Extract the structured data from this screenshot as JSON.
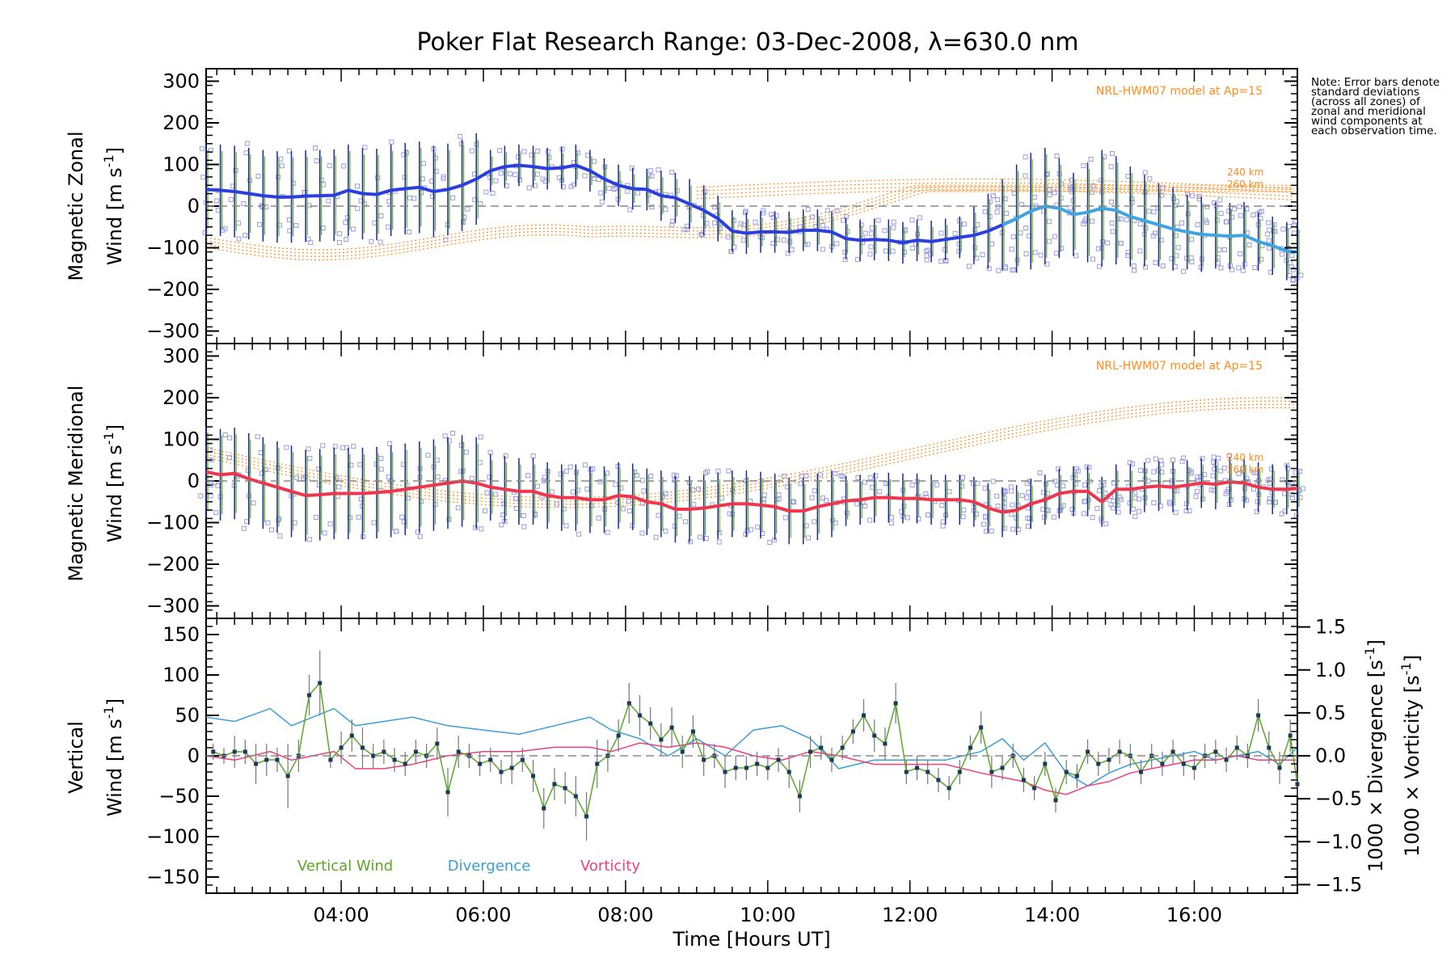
{
  "title": "Poker Flat Research Range: 03-Dec-2008, λ=630.0 nm",
  "note": "Note: Error bars denote standard deviations (across all zones) of zonal and meridional wind components at each observation time.",
  "colors": {
    "zonal": "#2b3fe0",
    "zonal_late": "#3fa4e0",
    "meridional": "#f0354f",
    "vertical": "#5aa825",
    "divergence": "#3a9fd8",
    "vorticity": "#f0407a",
    "model": "#ff8c1a",
    "scatter": "#9b9be0",
    "errbar": "#1a2a8a"
  },
  "chart_data": [
    {
      "type": "line",
      "panel": "zonal",
      "ylabel_line1": "Magnetic Zonal",
      "ylabel_line2": "Wind [m s",
      "ylabel_sup": "-1",
      "ylabel_close": "]",
      "ylim": [
        -330,
        330
      ],
      "yticks": [
        -300,
        -200,
        -100,
        0,
        100,
        200,
        300
      ],
      "model_label": "NRL-HWM07 model at Ap=15",
      "model_alt_labels": [
        "240 km",
        "260 km"
      ],
      "x": [
        2.1,
        2.3,
        2.5,
        2.7,
        2.9,
        3.1,
        3.3,
        3.5,
        3.7,
        3.9,
        4.1,
        4.3,
        4.5,
        4.7,
        4.9,
        5.1,
        5.3,
        5.5,
        5.7,
        5.9,
        6.1,
        6.3,
        6.5,
        6.7,
        6.9,
        7.1,
        7.3,
        7.5,
        7.7,
        7.9,
        8.1,
        8.3,
        8.5,
        8.7,
        8.9,
        9.1,
        9.3,
        9.5,
        9.7,
        9.9,
        10.1,
        10.3,
        10.5,
        10.7,
        10.9,
        11.1,
        11.3,
        11.5,
        11.7,
        11.9,
        12.1,
        12.3,
        12.5,
        12.7,
        12.9,
        13.1,
        13.3,
        13.5,
        13.7,
        13.9,
        14.1,
        14.3,
        14.5,
        14.7,
        14.9,
        15.1,
        15.3,
        15.5,
        15.7,
        15.9,
        16.1,
        16.3,
        16.5,
        16.7,
        16.9,
        17.1,
        17.3,
        17.45
      ],
      "values": [
        40,
        38,
        35,
        30,
        25,
        22,
        22,
        24,
        25,
        26,
        38,
        30,
        28,
        38,
        42,
        45,
        35,
        40,
        50,
        65,
        85,
        95,
        98,
        95,
        90,
        92,
        98,
        85,
        65,
        50,
        42,
        40,
        25,
        20,
        5,
        -10,
        -30,
        -60,
        -65,
        -62,
        -62,
        -63,
        -58,
        -58,
        -62,
        -78,
        -82,
        -80,
        -82,
        -88,
        -82,
        -85,
        -80,
        -75,
        -70,
        -60,
        -45,
        -30,
        -12,
        0,
        -5,
        -20,
        -15,
        -5,
        -10,
        -25,
        -35,
        -45,
        -55,
        -62,
        -68,
        -70,
        -72,
        -70,
        -85,
        -95,
        -108,
        -110
      ],
      "err": [
        110,
        110,
        110,
        110,
        110,
        110,
        110,
        110,
        110,
        110,
        110,
        110,
        110,
        110,
        110,
        110,
        110,
        110,
        110,
        110,
        50,
        50,
        50,
        50,
        50,
        50,
        50,
        50,
        50,
        50,
        50,
        50,
        60,
        60,
        60,
        60,
        55,
        50,
        50,
        50,
        50,
        50,
        50,
        50,
        50,
        50,
        50,
        50,
        50,
        50,
        50,
        50,
        50,
        50,
        70,
        90,
        110,
        130,
        140,
        140,
        120,
        100,
        120,
        140,
        130,
        120,
        110,
        100,
        100,
        90,
        90,
        80,
        80,
        80,
        70,
        70,
        70,
        70
      ]
    },
    {
      "type": "line",
      "panel": "meridional",
      "ylabel_line1": "Magnetic Meridional",
      "ylabel_line2": "Wind [m s",
      "ylabel_sup": "-1",
      "ylabel_close": "]",
      "ylim": [
        -330,
        330
      ],
      "yticks": [
        -300,
        -200,
        -100,
        0,
        100,
        200,
        300
      ],
      "model_label": "NRL-HWM07 model at Ap=15",
      "model_alt_labels": [
        "240 km",
        "260 km"
      ],
      "x": [
        2.1,
        2.3,
        2.5,
        2.7,
        2.9,
        3.1,
        3.3,
        3.5,
        3.7,
        3.9,
        4.1,
        4.3,
        4.5,
        4.7,
        4.9,
        5.1,
        5.3,
        5.5,
        5.7,
        5.9,
        6.1,
        6.3,
        6.5,
        6.7,
        6.9,
        7.1,
        7.3,
        7.5,
        7.7,
        7.9,
        8.1,
        8.3,
        8.5,
        8.7,
        8.9,
        9.1,
        9.3,
        9.5,
        9.7,
        9.9,
        10.1,
        10.3,
        10.5,
        10.7,
        10.9,
        11.1,
        11.3,
        11.5,
        11.7,
        11.9,
        12.1,
        12.3,
        12.5,
        12.7,
        12.9,
        13.1,
        13.3,
        13.5,
        13.7,
        13.9,
        14.1,
        14.3,
        14.5,
        14.7,
        14.9,
        15.1,
        15.3,
        15.5,
        15.7,
        15.9,
        16.1,
        16.3,
        16.5,
        16.7,
        16.9,
        17.1,
        17.3,
        17.45
      ],
      "values": [
        22,
        15,
        18,
        5,
        -5,
        -15,
        -25,
        -35,
        -33,
        -30,
        -30,
        -30,
        -28,
        -25,
        -20,
        -15,
        -10,
        -5,
        0,
        -5,
        -15,
        -20,
        -25,
        -25,
        -35,
        -40,
        -40,
        -45,
        -45,
        -35,
        -38,
        -50,
        -55,
        -68,
        -68,
        -65,
        -60,
        -55,
        -55,
        -58,
        -62,
        -72,
        -72,
        -62,
        -55,
        -48,
        -45,
        -40,
        -40,
        -42,
        -42,
        -45,
        -45,
        -45,
        -50,
        -65,
        -75,
        -70,
        -55,
        -45,
        -30,
        -25,
        -25,
        -50,
        -20,
        -20,
        -15,
        -12,
        -15,
        -10,
        -5,
        -8,
        -2,
        -5,
        -15,
        -20,
        -20,
        -18
      ],
      "err": [
        110,
        110,
        110,
        110,
        110,
        110,
        110,
        110,
        110,
        110,
        110,
        110,
        110,
        110,
        110,
        110,
        110,
        110,
        110,
        110,
        80,
        80,
        80,
        80,
        80,
        80,
        80,
        80,
        80,
        80,
        80,
        80,
        80,
        80,
        80,
        80,
        80,
        80,
        80,
        80,
        80,
        80,
        80,
        80,
        80,
        60,
        60,
        60,
        60,
        60,
        60,
        60,
        60,
        60,
        60,
        60,
        60,
        60,
        60,
        60,
        60,
        60,
        60,
        60,
        60,
        60,
        60,
        60,
        60,
        60,
        60,
        60,
        60,
        60,
        60,
        60,
        60,
        60
      ]
    },
    {
      "type": "line",
      "panel": "vertical",
      "ylabel_line1": "Vertical",
      "ylabel_line2": "Wind [m s",
      "ylabel_sup": "-1",
      "ylabel_close": "]",
      "ylim": [
        -170,
        170
      ],
      "yticks": [
        -150,
        -100,
        -50,
        0,
        50,
        100,
        150
      ],
      "y2lim": [
        -1.6,
        1.6
      ],
      "y2ticks": [
        -1.5,
        -1.0,
        -0.5,
        0.0,
        0.5,
        1.0,
        1.5
      ],
      "y2label_div": "1000 × Divergence [s",
      "y2label_vor": "1000 × Vorticity [s",
      "y2label_sup": "-1",
      "y2label_close": "]",
      "xticks": [
        "04:00",
        "06:00",
        "08:00",
        "10:00",
        "12:00",
        "14:00",
        "16:00"
      ],
      "xtick_values": [
        4,
        6,
        8,
        10,
        12,
        14,
        16
      ],
      "xlabel": "Time [Hours UT]",
      "xlim": [
        2.1,
        17.45
      ],
      "legend": [
        "Vertical Wind",
        "Divergence",
        "Vorticity"
      ],
      "series": [
        {
          "name": "Vertical Wind",
          "x": [
            2.2,
            2.35,
            2.5,
            2.65,
            2.8,
            2.95,
            3.1,
            3.25,
            3.4,
            3.55,
            3.7,
            3.85,
            4.0,
            4.15,
            4.3,
            4.45,
            4.6,
            4.75,
            4.9,
            5.05,
            5.2,
            5.35,
            5.5,
            5.65,
            5.8,
            5.95,
            6.1,
            6.25,
            6.4,
            6.55,
            6.7,
            6.85,
            7.0,
            7.15,
            7.3,
            7.45,
            7.6,
            7.75,
            7.9,
            8.05,
            8.2,
            8.35,
            8.5,
            8.65,
            8.8,
            8.95,
            9.1,
            9.25,
            9.4,
            9.55,
            9.7,
            9.85,
            10.0,
            10.15,
            10.3,
            10.45,
            10.6,
            10.75,
            10.9,
            11.05,
            11.2,
            11.35,
            11.5,
            11.65,
            11.8,
            11.95,
            12.1,
            12.25,
            12.4,
            12.55,
            12.7,
            12.85,
            13.0,
            13.15,
            13.3,
            13.45,
            13.6,
            13.75,
            13.9,
            14.05,
            14.2,
            14.35,
            14.5,
            14.65,
            14.8,
            14.95,
            15.1,
            15.25,
            15.4,
            15.55,
            15.7,
            15.85,
            16.0,
            16.15,
            16.3,
            16.45,
            16.6,
            16.75,
            16.9,
            17.05,
            17.2,
            17.35,
            17.45
          ],
          "values": [
            5,
            0,
            5,
            5,
            -10,
            -5,
            -5,
            -25,
            0,
            75,
            90,
            -5,
            10,
            25,
            10,
            0,
            5,
            -5,
            -10,
            5,
            0,
            15,
            -45,
            5,
            0,
            -10,
            -5,
            -20,
            -15,
            -5,
            -25,
            -65,
            -35,
            -40,
            -50,
            -75,
            -10,
            0,
            25,
            65,
            50,
            40,
            20,
            35,
            5,
            30,
            -5,
            0,
            -20,
            -15,
            -15,
            -10,
            -15,
            -5,
            -20,
            -50,
            5,
            10,
            -5,
            10,
            30,
            50,
            25,
            15,
            65,
            -20,
            -15,
            -20,
            -30,
            -40,
            -20,
            10,
            35,
            -20,
            -15,
            0,
            -30,
            -40,
            -10,
            -55,
            -20,
            -25,
            5,
            -10,
            -5,
            5,
            0,
            -20,
            0,
            -10,
            5,
            -10,
            -15,
            0,
            5,
            -5,
            10,
            0,
            50,
            10,
            -15,
            25,
            -35
          ],
          "err": [
            10,
            10,
            20,
            15,
            25,
            20,
            15,
            40,
            20,
            25,
            40,
            10,
            20,
            20,
            25,
            15,
            15,
            15,
            15,
            15,
            15,
            20,
            30,
            20,
            15,
            15,
            15,
            15,
            20,
            15,
            20,
            25,
            20,
            20,
            25,
            30,
            30,
            20,
            20,
            25,
            25,
            20,
            20,
            25,
            20,
            20,
            20,
            15,
            20,
            15,
            15,
            15,
            15,
            15,
            20,
            20,
            20,
            15,
            15,
            15,
            15,
            20,
            20,
            20,
            25,
            15,
            15,
            15,
            15,
            15,
            15,
            15,
            20,
            20,
            15,
            15,
            15,
            15,
            15,
            15,
            15,
            15,
            15,
            15,
            15,
            15,
            15,
            15,
            15,
            15,
            15,
            15,
            15,
            15,
            15,
            15,
            15,
            15,
            20,
            20,
            20,
            20,
            15
          ]
        },
        {
          "name": "Divergence",
          "x": [
            2.1,
            2.5,
            3.0,
            3.3,
            3.6,
            3.9,
            4.2,
            4.6,
            5.0,
            5.5,
            6.0,
            6.5,
            7.0,
            7.5,
            7.8,
            8.2,
            8.6,
            9.0,
            9.4,
            9.8,
            10.2,
            10.6,
            11.0,
            11.5,
            12.0,
            12.5,
            13.0,
            13.3,
            13.6,
            13.9,
            14.2,
            14.5,
            14.8,
            15.1,
            15.4,
            15.7,
            16.0,
            16.3,
            16.6,
            16.9,
            17.2,
            17.45
          ],
          "values": [
            0.45,
            0.4,
            0.55,
            0.35,
            0.45,
            0.55,
            0.35,
            0.4,
            0.45,
            0.35,
            0.3,
            0.25,
            0.35,
            0.45,
            0.3,
            0.2,
            0.0,
            0.2,
            0.0,
            0.3,
            0.35,
            0.2,
            -0.15,
            -0.05,
            -0.05,
            -0.05,
            0.05,
            0.2,
            -0.05,
            0.15,
            -0.2,
            -0.35,
            -0.2,
            -0.1,
            -0.05,
            0.0,
            0.05,
            -0.05,
            0.0,
            0.05,
            -0.1,
            0.1
          ]
        },
        {
          "name": "Vorticity",
          "x": [
            2.1,
            2.5,
            3.0,
            3.3,
            3.6,
            3.9,
            4.2,
            4.6,
            5.0,
            5.5,
            6.0,
            6.5,
            7.0,
            7.5,
            7.8,
            8.2,
            8.6,
            9.0,
            9.4,
            9.8,
            10.2,
            10.6,
            11.0,
            11.5,
            12.0,
            12.5,
            13.0,
            13.3,
            13.6,
            13.9,
            14.2,
            14.5,
            14.8,
            15.1,
            15.4,
            15.7,
            16.0,
            16.3,
            16.6,
            16.9,
            17.2,
            17.45
          ],
          "values": [
            0.0,
            -0.05,
            0.05,
            -0.05,
            0.0,
            0.05,
            -0.15,
            -0.15,
            -0.1,
            0.0,
            0.05,
            0.05,
            0.1,
            0.1,
            0.05,
            0.15,
            0.1,
            0.15,
            0.1,
            0.0,
            -0.05,
            0.05,
            0.0,
            -0.1,
            -0.1,
            -0.1,
            -0.2,
            -0.25,
            -0.3,
            -0.4,
            -0.45,
            -0.35,
            -0.3,
            -0.2,
            -0.15,
            -0.1,
            -0.05,
            -0.05,
            0.0,
            -0.05,
            -0.05,
            -0.05
          ]
        }
      ]
    }
  ]
}
